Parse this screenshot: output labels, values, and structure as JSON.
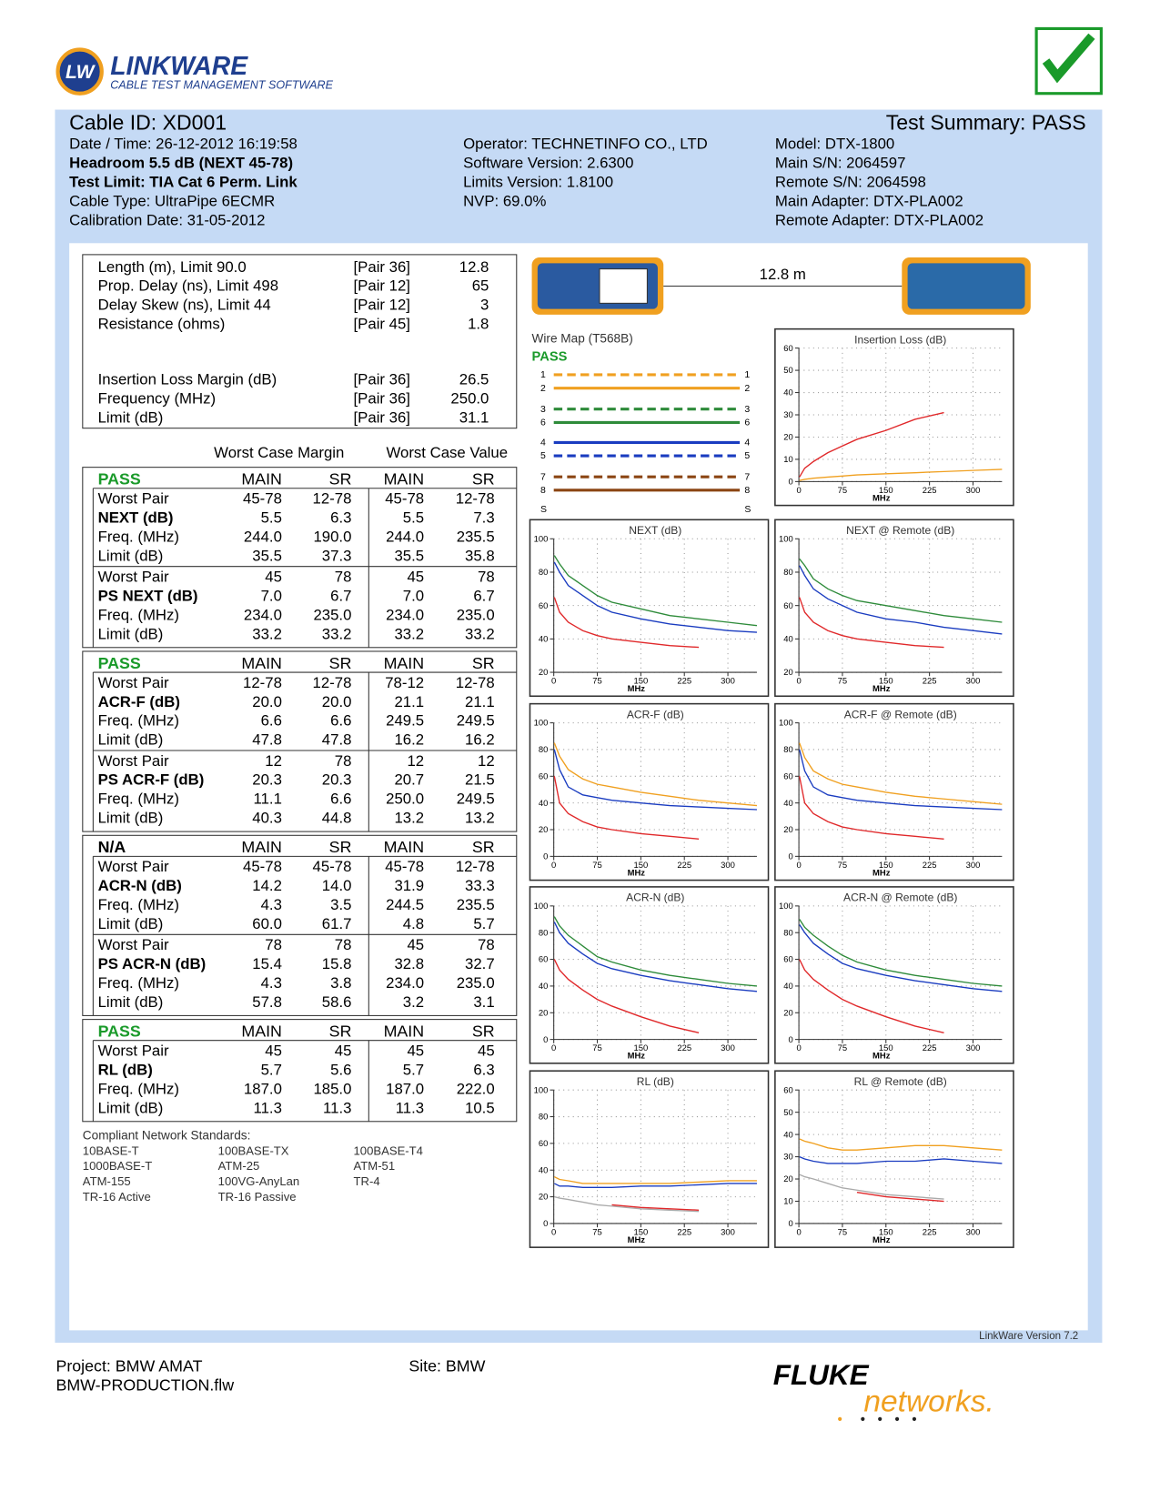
{
  "header": {
    "logo_badge": "LW",
    "logo_title": "LINKWARE",
    "logo_subtitle": "CABLE TEST MANAGEMENT SOFTWARE"
  },
  "summary": {
    "cable_id": "Cable ID: XD001",
    "test_summary": "Test Summary: PASS",
    "left": [
      "Date / Time: 26-12-2012  16:19:58",
      "Headroom 5.5 dB (NEXT 45-78)",
      "Test Limit: TIA Cat 6 Perm. Link",
      "Cable Type: UltraPipe 6ECMR",
      "Calibration Date: 31-05-2012"
    ],
    "middle": [
      "Operator: TECHNETINFO CO., LTD",
      "Software Version: 2.6300",
      "Limits Version: 1.8100",
      "NVP: 69.0%"
    ],
    "right": [
      "Model: DTX-1800",
      "Main S/N: 2064597",
      "Remote S/N: 2064598",
      "Main Adapter: DTX-PLA002",
      "Remote Adapter: DTX-PLA002"
    ]
  },
  "length_table": {
    "rows": [
      [
        "Length (m), Limit 90.0",
        "[Pair 36]",
        "12.8"
      ],
      [
        "Prop. Delay (ns), Limit 498",
        "[Pair 12]",
        "65"
      ],
      [
        "Delay Skew (ns), Limit 44",
        "[Pair 12]",
        "3"
      ],
      [
        "Resistance (ohms)",
        "[Pair 45]",
        "1.8"
      ],
      [
        "Insertion Loss Margin (dB)",
        "[Pair 36]",
        "26.5"
      ],
      [
        "Frequency (MHz)",
        "[Pair 36]",
        "250.0"
      ],
      [
        "Limit (dB)",
        "[Pair 36]",
        "31.1"
      ]
    ]
  },
  "worst_case_headers": [
    "Worst Case Margin",
    "Worst Case Value"
  ],
  "sections": [
    {
      "status": "PASS",
      "columns": [
        "MAIN",
        "SR",
        "MAIN",
        "SR"
      ],
      "groups": [
        [
          [
            "Worst Pair",
            "45-78",
            "12-78",
            "45-78",
            "12-78"
          ],
          [
            "NEXT (dB)",
            "5.5",
            "6.3",
            "5.5",
            "7.3"
          ],
          [
            "Freq. (MHz)",
            "244.0",
            "190.0",
            "244.0",
            "235.5"
          ],
          [
            "Limit (dB)",
            "35.5",
            "37.3",
            "35.5",
            "35.8"
          ]
        ],
        [
          [
            "Worst Pair",
            "45",
            "78",
            "45",
            "78"
          ],
          [
            "PS NEXT (dB)",
            "7.0",
            "6.7",
            "7.0",
            "6.7"
          ],
          [
            "Freq. (MHz)",
            "234.0",
            "235.0",
            "234.0",
            "235.0"
          ],
          [
            "Limit (dB)",
            "33.2",
            "33.2",
            "33.2",
            "33.2"
          ]
        ]
      ]
    },
    {
      "status": "PASS",
      "columns": [
        "MAIN",
        "SR",
        "MAIN",
        "SR"
      ],
      "groups": [
        [
          [
            "Worst Pair",
            "12-78",
            "12-78",
            "78-12",
            "12-78"
          ],
          [
            "ACR-F (dB)",
            "20.0",
            "20.0",
            "21.1",
            "21.1"
          ],
          [
            "Freq. (MHz)",
            "6.6",
            "6.6",
            "249.5",
            "249.5"
          ],
          [
            "Limit (dB)",
            "47.8",
            "47.8",
            "16.2",
            "16.2"
          ]
        ],
        [
          [
            "Worst Pair",
            "12",
            "78",
            "12",
            "12"
          ],
          [
            "PS ACR-F (dB)",
            "20.3",
            "20.3",
            "20.7",
            "21.5"
          ],
          [
            "Freq. (MHz)",
            "11.1",
            "6.6",
            "250.0",
            "249.5"
          ],
          [
            "Limit (dB)",
            "40.3",
            "44.8",
            "13.2",
            "13.2"
          ]
        ]
      ]
    },
    {
      "status": "N/A",
      "columns": [
        "MAIN",
        "SR",
        "MAIN",
        "SR"
      ],
      "groups": [
        [
          [
            "Worst Pair",
            "45-78",
            "45-78",
            "45-78",
            "12-78"
          ],
          [
            "ACR-N (dB)",
            "14.2",
            "14.0",
            "31.9",
            "33.3"
          ],
          [
            "Freq. (MHz)",
            "4.3",
            "3.5",
            "244.5",
            "235.5"
          ],
          [
            "Limit (dB)",
            "60.0",
            "61.7",
            "4.8",
            "5.7"
          ]
        ],
        [
          [
            "Worst Pair",
            "78",
            "78",
            "45",
            "78"
          ],
          [
            "PS ACR-N (dB)",
            "15.4",
            "15.8",
            "32.8",
            "32.7"
          ],
          [
            "Freq. (MHz)",
            "4.3",
            "3.8",
            "234.0",
            "235.0"
          ],
          [
            "Limit (dB)",
            "57.8",
            "58.6",
            "3.2",
            "3.1"
          ]
        ]
      ]
    },
    {
      "status": "PASS",
      "columns": [
        "MAIN",
        "SR",
        "MAIN",
        "SR"
      ],
      "groups": [
        [
          [
            "Worst Pair",
            "45",
            "45",
            "45",
            "45"
          ],
          [
            "RL (dB)",
            "5.7",
            "5.6",
            "5.7",
            "6.3"
          ],
          [
            "Freq. (MHz)",
            "187.0",
            "185.0",
            "187.0",
            "222.0"
          ],
          [
            "Limit (dB)",
            "11.3",
            "11.3",
            "11.3",
            "10.5"
          ]
        ]
      ]
    }
  ],
  "standards": {
    "title": "Compliant Network Standards:",
    "items": [
      "10BASE-T",
      "100BASE-TX",
      "100BASE-T4",
      "1000BASE-T",
      "ATM-25",
      "ATM-51",
      "ATM-155",
      "100VG-AnyLan",
      "TR-4",
      "TR-16 Active",
      "TR-16 Passive"
    ]
  },
  "device": {
    "length": "12.8 m"
  },
  "wire_map": {
    "title": "Wire Map (T568B)",
    "status": "PASS",
    "pins": [
      "1",
      "2",
      "3",
      "6",
      "4",
      "5",
      "7",
      "8",
      "S"
    ]
  },
  "chart_data": [
    {
      "type": "line",
      "title": "Insertion Loss (dB)",
      "x_label": "MHz",
      "xlim": [
        0,
        350
      ],
      "xticks": [
        0,
        75,
        150,
        225,
        300
      ],
      "ylim": [
        0,
        60
      ],
      "yticks": [
        0,
        10,
        20,
        30,
        40,
        50,
        60
      ],
      "grid": true,
      "x": [
        1,
        10,
        25,
        50,
        75,
        100,
        150,
        200,
        250,
        300,
        350
      ],
      "series": [
        {
          "color": "#e0282a",
          "values": [
            2,
            6,
            9,
            13,
            16,
            19,
            23,
            28,
            31,
            null,
            null
          ]
        },
        {
          "color": "#f0a020",
          "values": [
            0.5,
            1,
            1.5,
            2,
            2.5,
            3,
            3.5,
            4,
            4.5,
            5,
            5.5
          ]
        }
      ]
    },
    {
      "type": "line",
      "title": "NEXT (dB)",
      "x_label": "MHz",
      "xlim": [
        0,
        350
      ],
      "xticks": [
        0,
        75,
        150,
        225,
        300
      ],
      "ylim": [
        20,
        100
      ],
      "yticks": [
        20,
        40,
        60,
        80,
        100
      ],
      "grid": true,
      "x": [
        1,
        10,
        25,
        50,
        75,
        100,
        150,
        200,
        250,
        300,
        350
      ],
      "series": [
        {
          "color": "#e0282a",
          "values": [
            65,
            56,
            50,
            45,
            42,
            40,
            38,
            36,
            35,
            null,
            null
          ]
        },
        {
          "color": "#2e8b3a",
          "values": [
            90,
            85,
            78,
            72,
            66,
            62,
            58,
            54,
            52,
            50,
            48
          ]
        },
        {
          "color": "#1a3cc0",
          "values": [
            86,
            80,
            72,
            66,
            60,
            56,
            52,
            49,
            47,
            45,
            44
          ]
        }
      ]
    },
    {
      "type": "line",
      "title": "NEXT @ Remote (dB)",
      "x_label": "MHz",
      "xlim": [
        0,
        350
      ],
      "xticks": [
        0,
        75,
        150,
        225,
        300
      ],
      "ylim": [
        20,
        100
      ],
      "yticks": [
        20,
        40,
        60,
        80,
        100
      ],
      "grid": true,
      "x": [
        1,
        10,
        25,
        50,
        75,
        100,
        150,
        200,
        250,
        300,
        350
      ],
      "series": [
        {
          "color": "#e0282a",
          "values": [
            65,
            56,
            50,
            45,
            42,
            40,
            38,
            36,
            35,
            null,
            null
          ]
        },
        {
          "color": "#2e8b3a",
          "values": [
            88,
            84,
            76,
            70,
            66,
            63,
            60,
            57,
            54,
            52,
            50
          ]
        },
        {
          "color": "#1a3cc0",
          "values": [
            84,
            78,
            70,
            64,
            60,
            56,
            52,
            50,
            47,
            45,
            43
          ]
        }
      ]
    },
    {
      "type": "line",
      "title": "ACR-F (dB)",
      "x_label": "MHz",
      "xlim": [
        0,
        350
      ],
      "xticks": [
        0,
        75,
        150,
        225,
        300
      ],
      "ylim": [
        0,
        100
      ],
      "yticks": [
        0,
        20,
        40,
        60,
        80,
        100
      ],
      "grid": true,
      "x": [
        1,
        10,
        25,
        50,
        75,
        100,
        150,
        200,
        250,
        300,
        350
      ],
      "series": [
        {
          "color": "#e0282a",
          "values": [
            60,
            40,
            32,
            26,
            22,
            20,
            17,
            15,
            13,
            null,
            null
          ]
        },
        {
          "color": "#f0a020",
          "values": [
            85,
            75,
            65,
            58,
            54,
            52,
            48,
            45,
            42,
            40,
            38
          ]
        },
        {
          "color": "#1a3cc0",
          "values": [
            80,
            65,
            52,
            46,
            44,
            42,
            40,
            38,
            37,
            36,
            35
          ]
        }
      ]
    },
    {
      "type": "line",
      "title": "ACR-F @ Remote (dB)",
      "x_label": "MHz",
      "xlim": [
        0,
        350
      ],
      "xticks": [
        0,
        75,
        150,
        225,
        300
      ],
      "ylim": [
        0,
        100
      ],
      "yticks": [
        0,
        20,
        40,
        60,
        80,
        100
      ],
      "grid": true,
      "x": [
        1,
        10,
        25,
        50,
        75,
        100,
        150,
        200,
        250,
        300,
        350
      ],
      "series": [
        {
          "color": "#e0282a",
          "values": [
            60,
            40,
            32,
            26,
            22,
            20,
            17,
            15,
            13,
            null,
            null
          ]
        },
        {
          "color": "#f0a020",
          "values": [
            85,
            74,
            64,
            58,
            54,
            52,
            48,
            45,
            43,
            41,
            39
          ]
        },
        {
          "color": "#1a3cc0",
          "values": [
            80,
            64,
            52,
            46,
            44,
            42,
            40,
            38,
            37,
            36,
            35
          ]
        }
      ]
    },
    {
      "type": "line",
      "title": "ACR-N (dB)",
      "x_label": "MHz",
      "xlim": [
        0,
        350
      ],
      "xticks": [
        0,
        75,
        150,
        225,
        300
      ],
      "ylim": [
        0,
        100
      ],
      "yticks": [
        0,
        20,
        40,
        60,
        80,
        100
      ],
      "grid": true,
      "x": [
        1,
        10,
        25,
        50,
        75,
        100,
        150,
        200,
        250,
        300,
        350
      ],
      "series": [
        {
          "color": "#e0282a",
          "values": [
            60,
            52,
            45,
            37,
            30,
            25,
            17,
            10,
            5,
            null,
            null
          ]
        },
        {
          "color": "#2e8b3a",
          "values": [
            92,
            85,
            78,
            70,
            62,
            58,
            52,
            48,
            45,
            42,
            40
          ]
        },
        {
          "color": "#1a3cc0",
          "values": [
            88,
            80,
            72,
            64,
            57,
            53,
            48,
            44,
            41,
            38,
            36
          ]
        }
      ]
    },
    {
      "type": "line",
      "title": "ACR-N @ Remote (dB)",
      "x_label": "MHz",
      "xlim": [
        0,
        350
      ],
      "xticks": [
        0,
        75,
        150,
        225,
        300
      ],
      "ylim": [
        0,
        100
      ],
      "yticks": [
        0,
        20,
        40,
        60,
        80,
        100
      ],
      "grid": true,
      "x": [
        1,
        10,
        25,
        50,
        75,
        100,
        150,
        200,
        250,
        300,
        350
      ],
      "series": [
        {
          "color": "#e0282a",
          "values": [
            60,
            52,
            45,
            37,
            30,
            25,
            17,
            10,
            5,
            null,
            null
          ]
        },
        {
          "color": "#2e8b3a",
          "values": [
            90,
            84,
            78,
            70,
            63,
            58,
            52,
            48,
            45,
            42,
            40
          ]
        },
        {
          "color": "#1a3cc0",
          "values": [
            86,
            80,
            72,
            64,
            57,
            53,
            48,
            44,
            41,
            38,
            36
          ]
        }
      ]
    },
    {
      "type": "line",
      "title": "RL (dB)",
      "x_label": "MHz",
      "xlim": [
        0,
        350
      ],
      "xticks": [
        0,
        75,
        150,
        225,
        300
      ],
      "ylim": [
        0,
        100
      ],
      "yticks": [
        0,
        20,
        40,
        60,
        80,
        100
      ],
      "grid": true,
      "x": [
        1,
        10,
        25,
        50,
        75,
        100,
        150,
        200,
        250,
        300,
        350
      ],
      "series": [
        {
          "color": "#aaaaaa",
          "values": [
            20,
            19,
            18,
            16,
            14,
            13,
            11,
            10,
            9,
            null,
            null
          ]
        },
        {
          "color": "#e0282a",
          "values": [
            null,
            null,
            null,
            null,
            null,
            14,
            12,
            11,
            10,
            null,
            null
          ]
        },
        {
          "color": "#f0a020",
          "values": [
            35,
            33,
            32,
            30,
            30,
            30,
            30,
            30,
            31,
            32,
            32
          ]
        },
        {
          "color": "#1a3cc0",
          "values": [
            30,
            28,
            28,
            27,
            27,
            27,
            28,
            28,
            29,
            30,
            30
          ]
        }
      ]
    },
    {
      "type": "line",
      "title": "RL @ Remote (dB)",
      "x_label": "MHz",
      "xlim": [
        0,
        350
      ],
      "xticks": [
        0,
        75,
        150,
        225,
        300
      ],
      "ylim": [
        0,
        60
      ],
      "yticks": [
        0,
        10,
        20,
        30,
        40,
        50,
        60
      ],
      "grid": true,
      "x": [
        1,
        10,
        25,
        50,
        75,
        100,
        150,
        200,
        250,
        300,
        350
      ],
      "series": [
        {
          "color": "#aaaaaa",
          "values": [
            22,
            21,
            20,
            18,
            16,
            15,
            13,
            12,
            11,
            null,
            null
          ]
        },
        {
          "color": "#e0282a",
          "values": [
            null,
            null,
            null,
            null,
            null,
            14,
            12,
            11,
            10,
            null,
            null
          ]
        },
        {
          "color": "#f0a020",
          "values": [
            38,
            37,
            36,
            34,
            33,
            33,
            34,
            35,
            35,
            34,
            33
          ]
        },
        {
          "color": "#1a3cc0",
          "values": [
            30,
            29,
            28,
            27,
            27,
            27,
            28,
            28,
            29,
            28,
            27
          ]
        }
      ]
    }
  ],
  "footer": {
    "version": "LinkWare Version 7.2",
    "project": "Project: BMW AMAT",
    "file": "BMW-PRODUCTION.flw",
    "site": "Site: BMW",
    "brand_top": "FLUKE",
    "brand_bottom": "networks."
  }
}
